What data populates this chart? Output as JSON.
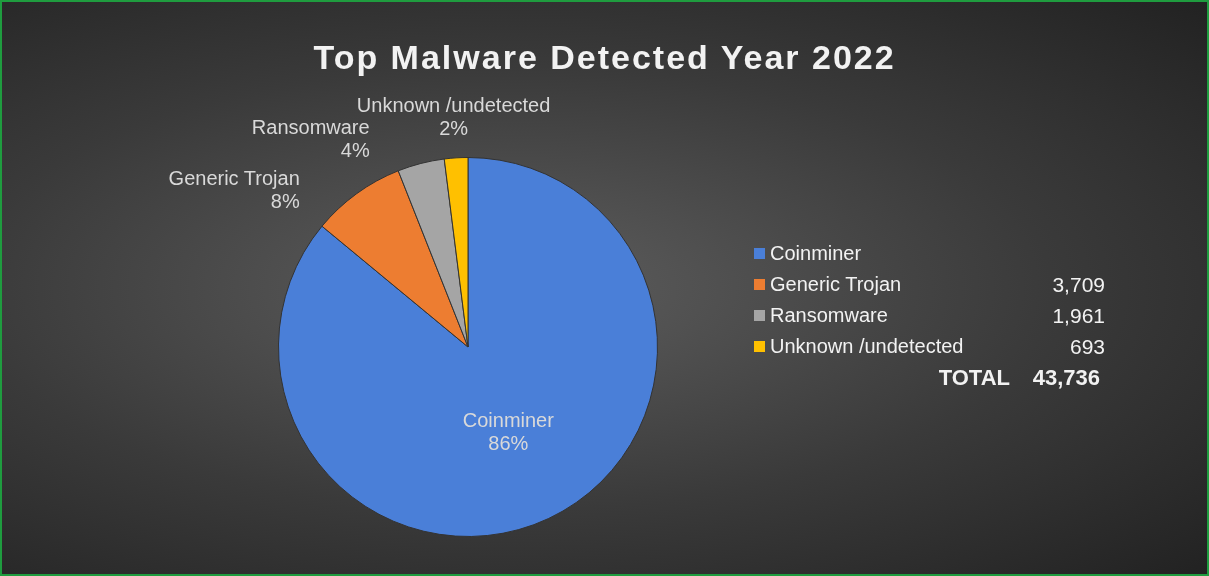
{
  "chart_data": {
    "type": "pie",
    "title": "Top Malware Detected Year 2022",
    "categories": [
      "Coinminer",
      "Generic Trojan",
      "Ransomware",
      "Unknown /undetected"
    ],
    "values": [
      86,
      8,
      4,
      2
    ],
    "colors": [
      "#4a7fd8",
      "#ed7d31",
      "#a5a5a5",
      "#ffc000"
    ],
    "value_labels": [
      "86%",
      "8%",
      "4%",
      "2%"
    ],
    "legend": "right",
    "annotations": [
      "3,709",
      "1,961",
      "693",
      "TOTAL",
      "43,736"
    ]
  }
}
